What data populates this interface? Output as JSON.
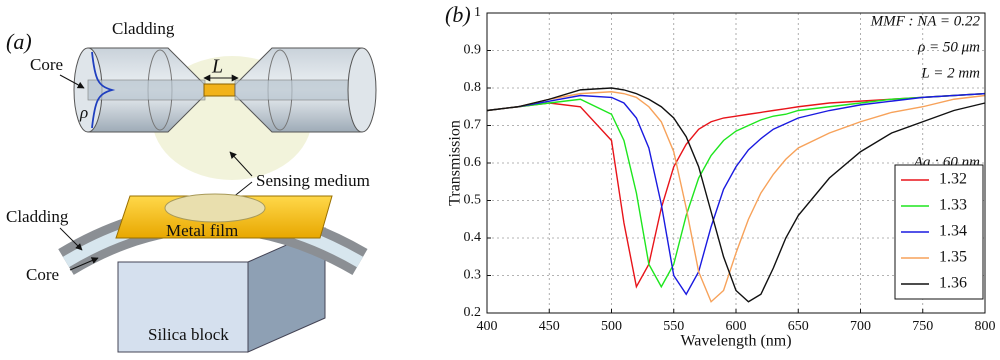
{
  "panel_a": {
    "label": "(a)",
    "texts": [
      "Cladding",
      "L",
      "Core",
      "ρ",
      "Sensing medium",
      "Cladding",
      "Metal film",
      "Core",
      "Silica block"
    ]
  },
  "chart_data": {
    "type": "line",
    "panel_label": "(b)",
    "x_label": "Wavelength (nm)",
    "y_label": "Transmission",
    "annotations": [
      "MMF : NA = 0.22",
      "ρ = 50 μm",
      "L = 2 mm",
      "Ag : 60 nm"
    ],
    "x": [
      400,
      425,
      450,
      475,
      500,
      510,
      520,
      530,
      540,
      550,
      560,
      570,
      580,
      590,
      600,
      610,
      620,
      630,
      640,
      650,
      675,
      700,
      725,
      750,
      775,
      800
    ],
    "series": [
      {
        "name": "1.32",
        "color": "#e8141a",
        "values": [
          0.74,
          0.75,
          0.76,
          0.75,
          0.66,
          0.44,
          0.27,
          0.33,
          0.48,
          0.59,
          0.65,
          0.69,
          0.71,
          0.72,
          0.725,
          0.73,
          0.735,
          0.74,
          0.745,
          0.75,
          0.76,
          0.765,
          0.77,
          0.775,
          0.78,
          0.785
        ]
      },
      {
        "name": "1.33",
        "color": "#1ee61e",
        "values": [
          0.74,
          0.75,
          0.76,
          0.77,
          0.73,
          0.66,
          0.52,
          0.33,
          0.27,
          0.33,
          0.46,
          0.56,
          0.62,
          0.66,
          0.685,
          0.7,
          0.715,
          0.725,
          0.73,
          0.74,
          0.75,
          0.76,
          0.77,
          0.775,
          0.78,
          0.785
        ]
      },
      {
        "name": "1.34",
        "color": "#1a1ae0",
        "values": [
          0.74,
          0.75,
          0.765,
          0.78,
          0.775,
          0.76,
          0.72,
          0.64,
          0.49,
          0.3,
          0.25,
          0.31,
          0.43,
          0.53,
          0.59,
          0.635,
          0.665,
          0.69,
          0.705,
          0.72,
          0.74,
          0.755,
          0.765,
          0.775,
          0.78,
          0.785
        ]
      },
      {
        "name": "1.35",
        "color": "#f7a25a",
        "values": [
          0.74,
          0.75,
          0.77,
          0.785,
          0.79,
          0.785,
          0.775,
          0.75,
          0.71,
          0.63,
          0.48,
          0.31,
          0.23,
          0.26,
          0.36,
          0.45,
          0.52,
          0.57,
          0.61,
          0.64,
          0.68,
          0.71,
          0.735,
          0.75,
          0.77,
          0.78
        ]
      },
      {
        "name": "1.36",
        "color": "#111111",
        "values": [
          0.74,
          0.75,
          0.77,
          0.795,
          0.8,
          0.795,
          0.785,
          0.77,
          0.75,
          0.72,
          0.67,
          0.59,
          0.47,
          0.35,
          0.26,
          0.23,
          0.25,
          0.32,
          0.4,
          0.46,
          0.56,
          0.63,
          0.68,
          0.71,
          0.74,
          0.76
        ]
      }
    ],
    "xlim": [
      400,
      800
    ],
    "xticks": [
      400,
      450,
      500,
      550,
      600,
      650,
      700,
      750,
      800
    ],
    "ylim": [
      0.2,
      1
    ],
    "yticks": [
      0.2,
      0.3,
      0.4,
      0.5,
      0.6,
      0.7,
      0.8,
      0.9,
      1
    ],
    "grid": true,
    "legend": "lower right"
  }
}
